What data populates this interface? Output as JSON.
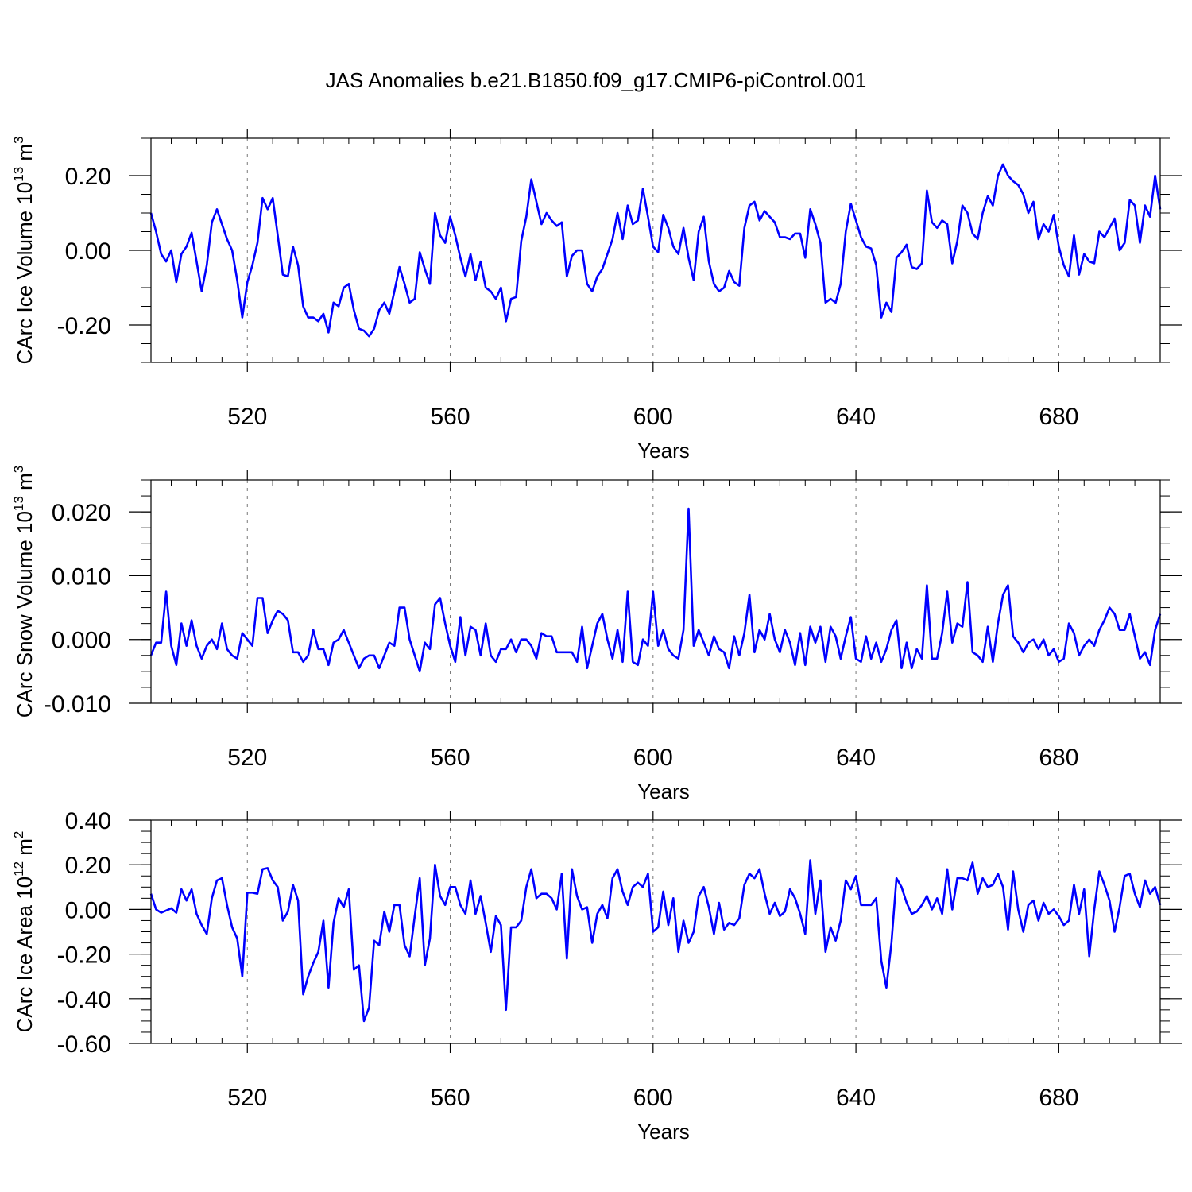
{
  "title": "JAS Anomalies b.e21.B1850.f09_g17.CMIP6-piControl.001",
  "colors": {
    "line": "#0000ff",
    "axis": "#000000",
    "grid": "#777777"
  },
  "chart_data": [
    {
      "type": "line",
      "ylabel": "CArc Ice Volume 10",
      "ylabel_exp": "13",
      "ylabel_unit": " m",
      "ylabel_unit_exp": "3",
      "xlabel": "Years",
      "xlim": [
        501,
        700
      ],
      "ylim": [
        -0.3,
        0.3
      ],
      "xticks": [
        520,
        560,
        600,
        640,
        680
      ],
      "xtick_labels": [
        "520",
        "560",
        "600",
        "640",
        "680"
      ],
      "yticks": [
        -0.2,
        0.0,
        0.2
      ],
      "ytick_labels": [
        "-0.20",
        "0.00",
        "0.20"
      ],
      "x_start": 501,
      "values": [
        0.1,
        0.05,
        -0.01,
        -0.03,
        0.0,
        -0.085,
        -0.01,
        0.01,
        0.047,
        -0.03,
        -0.11,
        -0.04,
        0.075,
        0.11,
        0.07,
        0.03,
        0.0,
        -0.08,
        -0.18,
        -0.085,
        -0.04,
        0.02,
        0.14,
        0.11,
        0.14,
        0.04,
        -0.065,
        -0.07,
        0.01,
        -0.04,
        -0.15,
        -0.18,
        -0.18,
        -0.19,
        -0.17,
        -0.22,
        -0.14,
        -0.15,
        -0.1,
        -0.09,
        -0.16,
        -0.21,
        -0.215,
        -0.23,
        -0.21,
        -0.16,
        -0.14,
        -0.17,
        -0.11,
        -0.045,
        -0.09,
        -0.14,
        -0.13,
        -0.005,
        -0.05,
        -0.09,
        0.1,
        0.04,
        0.02,
        0.09,
        0.04,
        -0.02,
        -0.07,
        -0.01,
        -0.08,
        -0.03,
        -0.1,
        -0.11,
        -0.13,
        -0.1,
        -0.19,
        -0.13,
        -0.125,
        0.025,
        0.09,
        0.19,
        0.13,
        0.07,
        0.1,
        0.08,
        0.065,
        0.075,
        -0.07,
        -0.015,
        0.0,
        0.0,
        -0.09,
        -0.11,
        -0.07,
        -0.05,
        -0.01,
        0.03,
        0.1,
        0.03,
        0.12,
        0.07,
        0.08,
        0.165,
        0.09,
        0.01,
        -0.005,
        0.095,
        0.06,
        0.01,
        -0.01,
        0.06,
        -0.02,
        -0.08,
        0.05,
        0.09,
        -0.03,
        -0.09,
        -0.11,
        -0.1,
        -0.055,
        -0.085,
        -0.095,
        0.06,
        0.12,
        0.13,
        0.08,
        0.105,
        0.09,
        0.075,
        0.035,
        0.035,
        0.03,
        0.045,
        0.045,
        -0.02,
        0.11,
        0.07,
        0.02,
        -0.14,
        -0.13,
        -0.14,
        -0.09,
        0.05,
        0.125,
        0.08,
        0.035,
        0.01,
        0.005,
        -0.04,
        -0.18,
        -0.14,
        -0.165,
        -0.02,
        -0.005,
        0.015,
        -0.045,
        -0.05,
        -0.035,
        0.16,
        0.075,
        0.06,
        0.08,
        0.07,
        -0.035,
        0.025,
        0.12,
        0.1,
        0.045,
        0.03,
        0.1,
        0.145,
        0.12,
        0.2,
        0.23,
        0.2,
        0.185,
        0.175,
        0.15,
        0.1,
        0.13,
        0.03,
        0.07,
        0.05,
        0.095,
        0.01,
        -0.04,
        -0.07,
        0.04,
        -0.065,
        -0.01,
        -0.03,
        -0.035,
        0.05,
        0.035,
        0.06,
        0.085,
        0.0,
        0.02,
        0.135,
        0.12,
        0.02,
        0.12,
        0.09,
        0.2,
        0.11
      ]
    },
    {
      "type": "line",
      "ylabel": "CArc Snow Volume 10",
      "ylabel_exp": "13",
      "ylabel_unit": " m",
      "ylabel_unit_exp": "3",
      "xlabel": "Years",
      "xlim": [
        501,
        700
      ],
      "ylim": [
        -0.01,
        0.025
      ],
      "xticks": [
        520,
        560,
        600,
        640,
        680
      ],
      "xtick_labels": [
        "520",
        "560",
        "600",
        "640",
        "680"
      ],
      "yticks": [
        -0.01,
        0.0,
        0.01,
        0.02
      ],
      "ytick_labels": [
        "-0.010",
        "0.000",
        "0.010",
        "0.020"
      ],
      "x_start": 501,
      "values": [
        -0.0025,
        -0.0005,
        -0.0005,
        0.0075,
        -0.001,
        -0.004,
        0.0025,
        -0.001,
        0.003,
        -0.001,
        -0.003,
        -0.001,
        0.0,
        -0.0015,
        0.0025,
        -0.0015,
        -0.0025,
        -0.003,
        0.001,
        0.0,
        -0.001,
        0.0065,
        0.0065,
        0.001,
        0.003,
        0.0045,
        0.004,
        0.003,
        -0.002,
        -0.002,
        -0.0035,
        -0.0025,
        0.0015,
        -0.0015,
        -0.0015,
        -0.004,
        -0.0005,
        0.0,
        0.0015,
        -0.0005,
        -0.0025,
        -0.0045,
        -0.003,
        -0.0025,
        -0.0025,
        -0.0045,
        -0.0025,
        -0.0005,
        -0.001,
        0.005,
        0.005,
        0.0,
        -0.0025,
        -0.005,
        -0.0005,
        -0.0015,
        0.0055,
        0.0065,
        0.0025,
        -0.001,
        -0.0035,
        0.0035,
        -0.0025,
        0.002,
        0.0015,
        -0.0025,
        0.0025,
        -0.0025,
        -0.0035,
        -0.0015,
        -0.0015,
        0.0,
        -0.002,
        0.0,
        0.0,
        -0.001,
        -0.003,
        0.001,
        0.0005,
        0.0005,
        -0.002,
        -0.002,
        -0.002,
        -0.002,
        -0.0035,
        0.002,
        -0.0045,
        -0.001,
        0.0025,
        0.004,
        0.0,
        -0.003,
        0.0015,
        -0.0035,
        0.0075,
        -0.0035,
        -0.004,
        0.0,
        -0.001,
        0.0075,
        -0.001,
        0.0015,
        -0.0015,
        -0.0025,
        -0.003,
        0.0015,
        0.0205,
        -0.001,
        0.0015,
        -0.0005,
        -0.0025,
        0.0005,
        -0.0015,
        -0.002,
        -0.0045,
        0.0005,
        -0.0025,
        0.001,
        0.007,
        -0.002,
        0.0015,
        0.0,
        0.004,
        0.0,
        -0.002,
        0.0015,
        -0.0005,
        -0.004,
        0.001,
        -0.004,
        0.002,
        -0.0005,
        0.002,
        -0.0035,
        0.002,
        0.0005,
        -0.003,
        0.0005,
        0.0035,
        -0.003,
        -0.0035,
        0.0005,
        -0.003,
        -0.0005,
        -0.0035,
        -0.0015,
        0.0015,
        0.003,
        -0.0045,
        -0.0005,
        -0.0045,
        -0.0015,
        -0.003,
        0.0085,
        -0.003,
        -0.003,
        0.001,
        0.0075,
        -0.0005,
        0.0025,
        0.002,
        0.009,
        -0.002,
        -0.0025,
        -0.0035,
        0.002,
        -0.0035,
        0.0025,
        0.007,
        0.0085,
        0.0005,
        -0.0005,
        -0.002,
        -0.0005,
        0.0,
        -0.0015,
        0.0,
        -0.0025,
        -0.0015,
        -0.0035,
        -0.003,
        0.0025,
        0.001,
        -0.0025,
        -0.001,
        0.0,
        -0.001,
        0.0015,
        0.003,
        0.005,
        0.004,
        0.0015,
        0.0015,
        0.004,
        0.0005,
        -0.003,
        -0.002,
        -0.004,
        0.0015,
        0.004
      ]
    },
    {
      "type": "line",
      "ylabel": "CArc Ice Area 10",
      "ylabel_exp": "12",
      "ylabel_unit": " m",
      "ylabel_unit_exp": "2",
      "xlabel": "Years",
      "xlim": [
        501,
        700
      ],
      "ylim": [
        -0.6,
        0.4
      ],
      "xticks": [
        520,
        560,
        600,
        640,
        680
      ],
      "xtick_labels": [
        "520",
        "560",
        "600",
        "640",
        "680"
      ],
      "yticks": [
        -0.6,
        -0.4,
        -0.2,
        0.0,
        0.2,
        0.4
      ],
      "ytick_labels": [
        "-0.60",
        "-0.40",
        "-0.20",
        "0.00",
        "0.20",
        "0.40"
      ],
      "x_start": 501,
      "values": [
        0.07,
        0.0,
        -0.015,
        -0.005,
        0.005,
        -0.015,
        0.09,
        0.04,
        0.09,
        -0.02,
        -0.07,
        -0.11,
        0.05,
        0.13,
        0.14,
        0.02,
        -0.08,
        -0.13,
        -0.3,
        0.075,
        0.075,
        0.07,
        0.18,
        0.185,
        0.13,
        0.1,
        -0.05,
        -0.01,
        0.11,
        0.04,
        -0.38,
        -0.3,
        -0.24,
        -0.19,
        -0.05,
        -0.35,
        -0.06,
        0.05,
        0.01,
        0.09,
        -0.27,
        -0.25,
        -0.5,
        -0.44,
        -0.14,
        -0.16,
        -0.01,
        -0.1,
        0.02,
        0.02,
        -0.16,
        -0.21,
        -0.03,
        0.14,
        -0.25,
        -0.13,
        0.2,
        0.06,
        0.02,
        0.1,
        0.1,
        0.02,
        -0.02,
        0.13,
        -0.02,
        0.06,
        -0.06,
        -0.19,
        -0.03,
        -0.07,
        -0.45,
        -0.08,
        -0.08,
        -0.05,
        0.1,
        0.18,
        0.05,
        0.07,
        0.07,
        0.05,
        0.0,
        0.16,
        -0.22,
        0.18,
        0.06,
        0.0,
        0.01,
        -0.15,
        -0.02,
        0.02,
        -0.04,
        0.14,
        0.18,
        0.08,
        0.02,
        0.1,
        0.12,
        0.1,
        0.16,
        -0.1,
        -0.08,
        0.08,
        -0.07,
        0.05,
        -0.19,
        -0.05,
        -0.15,
        -0.1,
        0.06,
        0.1,
        0.01,
        -0.11,
        0.03,
        -0.09,
        -0.06,
        -0.07,
        -0.04,
        0.11,
        0.16,
        0.14,
        0.18,
        0.07,
        -0.02,
        0.03,
        -0.03,
        -0.01,
        0.09,
        0.05,
        -0.02,
        -0.11,
        0.22,
        -0.02,
        0.13,
        -0.19,
        -0.08,
        -0.14,
        -0.05,
        0.13,
        0.09,
        0.15,
        0.02,
        0.02,
        0.02,
        0.05,
        -0.23,
        -0.35,
        -0.15,
        0.14,
        0.1,
        0.03,
        -0.02,
        -0.01,
        0.02,
        0.06,
        0.0,
        0.05,
        -0.02,
        0.18,
        0.0,
        0.14,
        0.14,
        0.13,
        0.21,
        0.07,
        0.14,
        0.1,
        0.11,
        0.16,
        0.1,
        -0.09,
        0.17,
        0.0,
        -0.1,
        0.02,
        0.04,
        -0.05,
        0.03,
        -0.02,
        0.0,
        -0.03,
        -0.07,
        -0.05,
        0.11,
        -0.02,
        0.09,
        -0.21,
        0.0,
        0.17,
        0.11,
        0.04,
        -0.1,
        0.01,
        0.15,
        0.16,
        0.07,
        0.01,
        0.13,
        0.07,
        0.1,
        0.02
      ]
    }
  ]
}
